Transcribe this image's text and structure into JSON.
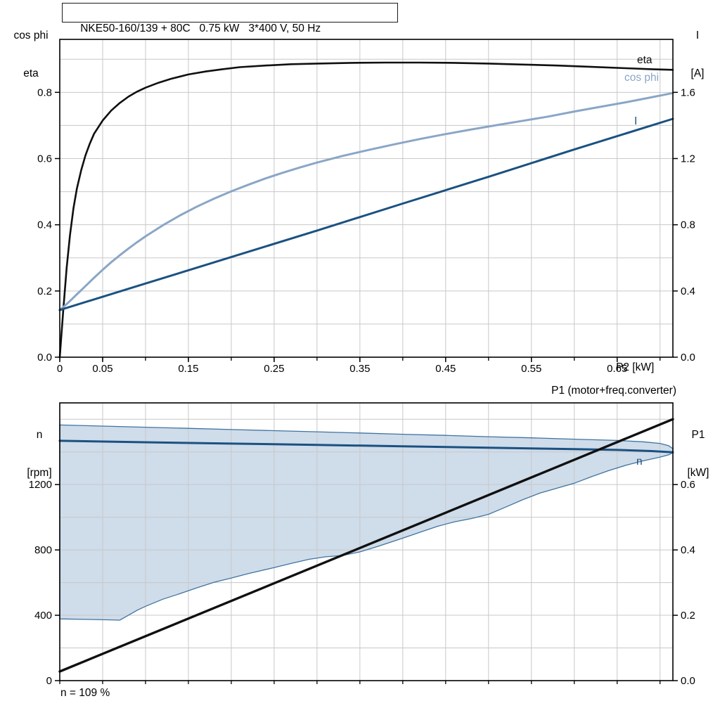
{
  "header": {
    "title": "NKE50-160/139 + 80C   0.75 kW   3*400 V, 50 Hz"
  },
  "labels": {
    "left_axis_top": [
      "cos phi",
      "eta"
    ],
    "right_axis_top": [
      "I",
      "[A]"
    ],
    "x_axis_top": "P2 [kW]",
    "left_axis_bottom": [
      "n",
      "[rpm]"
    ],
    "right_axis_bottom": [
      "P1",
      "[kW]"
    ],
    "p1_line": "P1 (motor+freq.converter)",
    "note": "n = 109 %",
    "curve_eta": "eta",
    "curve_cos_phi": "cos phi",
    "curve_current": "I",
    "curve_speed": "n"
  },
  "colors": {
    "eta": "#101010",
    "cos_phi": "#8aa6c6",
    "current": "#1b5181",
    "speed": "#1b5181",
    "p1": "#101010",
    "range_fill": "#cfdcea",
    "range_edge": "#40739f",
    "grid": "#c8c8c8",
    "frame": "#000000"
  },
  "chart_data": [
    {
      "type": "line",
      "title": "NKE50-160/139 + 80C   0.75 kW   3*400 V, 50 Hz",
      "xlabel": "P2 [kW]",
      "ylabel_left": "cos phi, eta",
      "ylabel_right": "I [A]",
      "xlim": [
        0,
        0.715
      ],
      "ylim_left": [
        0,
        0.96
      ],
      "ylim_right": [
        0,
        1.92
      ],
      "grid": {
        "x_step": 0.05,
        "y_step": 0.1
      },
      "legend_position": "right-inline",
      "x_ticks": [
        {
          "v": 0,
          "label": "0"
        },
        {
          "v": 0.05,
          "label": "0.05"
        },
        {
          "v": 0.15,
          "label": "0.15"
        },
        {
          "v": 0.25,
          "label": "0.25"
        },
        {
          "v": 0.35,
          "label": "0.35"
        },
        {
          "v": 0.45,
          "label": "0.45"
        },
        {
          "v": 0.55,
          "label": "0.55"
        },
        {
          "v": 0.65,
          "label": "0.65"
        }
      ],
      "y_ticks_left": [
        {
          "v": 0,
          "label": "0.0"
        },
        {
          "v": 0.2,
          "label": "0.2"
        },
        {
          "v": 0.4,
          "label": "0.4"
        },
        {
          "v": 0.6,
          "label": "0.6"
        },
        {
          "v": 0.8,
          "label": "0.8"
        }
      ],
      "y_ticks_right": [
        {
          "v": 0,
          "label": "0.0"
        },
        {
          "v": 0.4,
          "label": "0.4"
        },
        {
          "v": 0.8,
          "label": "0.8"
        },
        {
          "v": 1.2,
          "label": "1.2"
        },
        {
          "v": 1.6,
          "label": "1.6"
        }
      ],
      "series": [
        {
          "name": "eta",
          "axis": "left",
          "color_key": "eta",
          "width": 2.6,
          "points": [
            [
              0,
              0
            ],
            [
              0.004,
              0.14
            ],
            [
              0.008,
              0.27
            ],
            [
              0.012,
              0.37
            ],
            [
              0.016,
              0.45
            ],
            [
              0.02,
              0.51
            ],
            [
              0.025,
              0.565
            ],
            [
              0.03,
              0.61
            ],
            [
              0.035,
              0.645
            ],
            [
              0.04,
              0.675
            ],
            [
              0.05,
              0.715
            ],
            [
              0.06,
              0.745
            ],
            [
              0.07,
              0.768
            ],
            [
              0.08,
              0.787
            ],
            [
              0.09,
              0.802
            ],
            [
              0.1,
              0.814
            ],
            [
              0.115,
              0.829
            ],
            [
              0.13,
              0.841
            ],
            [
              0.15,
              0.854
            ],
            [
              0.17,
              0.863
            ],
            [
              0.19,
              0.87
            ],
            [
              0.21,
              0.876
            ],
            [
              0.24,
              0.881
            ],
            [
              0.27,
              0.885
            ],
            [
              0.3,
              0.887
            ],
            [
              0.34,
              0.889
            ],
            [
              0.38,
              0.89
            ],
            [
              0.42,
              0.89
            ],
            [
              0.46,
              0.889
            ],
            [
              0.5,
              0.887
            ],
            [
              0.54,
              0.884
            ],
            [
              0.58,
              0.881
            ],
            [
              0.62,
              0.877
            ],
            [
              0.66,
              0.873
            ],
            [
              0.69,
              0.87
            ],
            [
              0.715,
              0.868
            ]
          ]
        },
        {
          "name": "cos phi",
          "axis": "left",
          "color_key": "cos_phi",
          "width": 3,
          "points": [
            [
              0,
              0.142
            ],
            [
              0.01,
              0.165
            ],
            [
              0.02,
              0.19
            ],
            [
              0.03,
              0.215
            ],
            [
              0.04,
              0.24
            ],
            [
              0.05,
              0.264
            ],
            [
              0.06,
              0.287
            ],
            [
              0.07,
              0.308
            ],
            [
              0.08,
              0.328
            ],
            [
              0.09,
              0.347
            ],
            [
              0.1,
              0.365
            ],
            [
              0.12,
              0.398
            ],
            [
              0.14,
              0.428
            ],
            [
              0.16,
              0.455
            ],
            [
              0.18,
              0.479
            ],
            [
              0.2,
              0.501
            ],
            [
              0.22,
              0.521
            ],
            [
              0.24,
              0.54
            ],
            [
              0.26,
              0.557
            ],
            [
              0.28,
              0.573
            ],
            [
              0.3,
              0.588
            ],
            [
              0.33,
              0.608
            ],
            [
              0.36,
              0.626
            ],
            [
              0.39,
              0.643
            ],
            [
              0.42,
              0.659
            ],
            [
              0.45,
              0.674
            ],
            [
              0.48,
              0.688
            ],
            [
              0.51,
              0.701
            ],
            [
              0.54,
              0.714
            ],
            [
              0.57,
              0.727
            ],
            [
              0.6,
              0.742
            ],
            [
              0.63,
              0.756
            ],
            [
              0.66,
              0.77
            ],
            [
              0.69,
              0.785
            ],
            [
              0.715,
              0.798
            ]
          ]
        },
        {
          "name": "I",
          "axis": "right",
          "color_key": "current",
          "width": 3,
          "points": [
            [
              0,
              0.285
            ],
            [
              0.1,
              0.445
            ],
            [
              0.2,
              0.605
            ],
            [
              0.3,
              0.765
            ],
            [
              0.4,
              0.928
            ],
            [
              0.5,
              1.09
            ],
            [
              0.6,
              1.255
            ],
            [
              0.715,
              1.44
            ]
          ]
        }
      ]
    },
    {
      "type": "line+area",
      "title": "",
      "xlabel": "",
      "ylabel_left": "n [rpm]",
      "ylabel_right": "P1 [kW]",
      "xlim": [
        0,
        0.715
      ],
      "ylim_left": [
        0,
        1700
      ],
      "ylim_right": [
        0,
        0.85
      ],
      "grid": {
        "x_step": 0.05,
        "y_step": 200
      },
      "annotation": "P1 (motor+freq.converter)",
      "note": "n = 109 %",
      "x_ticks": [],
      "y_ticks_left": [
        {
          "v": 0,
          "label": "0"
        },
        {
          "v": 400,
          "label": "400"
        },
        {
          "v": 800,
          "label": "800"
        },
        {
          "v": 1200,
          "label": "1200"
        }
      ],
      "y_ticks_right": [
        {
          "v": 0,
          "label": "0.0"
        },
        {
          "v": 0.2,
          "label": "0.2"
        },
        {
          "v": 0.4,
          "label": "0.4"
        },
        {
          "v": 0.6,
          "label": "0.6"
        }
      ],
      "area": {
        "name": "speed-control-range",
        "fill_key": "range_fill",
        "edge_key": "range_edge",
        "upper": [
          [
            0,
            1565
          ],
          [
            0.05,
            1558
          ],
          [
            0.1,
            1551
          ],
          [
            0.15,
            1544
          ],
          [
            0.2,
            1537
          ],
          [
            0.25,
            1530
          ],
          [
            0.3,
            1523
          ],
          [
            0.35,
            1516
          ],
          [
            0.4,
            1508
          ],
          [
            0.45,
            1501
          ],
          [
            0.5,
            1493
          ],
          [
            0.55,
            1486
          ],
          [
            0.6,
            1478
          ],
          [
            0.65,
            1470
          ],
          [
            0.68,
            1462
          ],
          [
            0.7,
            1452
          ],
          [
            0.71,
            1438
          ],
          [
            0.715,
            1420
          ]
        ],
        "lower": [
          [
            0,
            378
          ],
          [
            0.03,
            375
          ],
          [
            0.06,
            372
          ],
          [
            0.07,
            370
          ],
          [
            0.08,
            400
          ],
          [
            0.09,
            430
          ],
          [
            0.1,
            455
          ],
          [
            0.12,
            498
          ],
          [
            0.14,
            532
          ],
          [
            0.16,
            568
          ],
          [
            0.18,
            602
          ],
          [
            0.2,
            628
          ],
          [
            0.22,
            655
          ],
          [
            0.25,
            692
          ],
          [
            0.27,
            718
          ],
          [
            0.29,
            742
          ],
          [
            0.31,
            758
          ],
          [
            0.33,
            766
          ],
          [
            0.35,
            788
          ],
          [
            0.37,
            820
          ],
          [
            0.4,
            872
          ],
          [
            0.42,
            908
          ],
          [
            0.44,
            944
          ],
          [
            0.46,
            972
          ],
          [
            0.48,
            992
          ],
          [
            0.5,
            1018
          ],
          [
            0.52,
            1062
          ],
          [
            0.54,
            1108
          ],
          [
            0.56,
            1148
          ],
          [
            0.58,
            1178
          ],
          [
            0.6,
            1208
          ],
          [
            0.62,
            1248
          ],
          [
            0.64,
            1285
          ],
          [
            0.66,
            1318
          ],
          [
            0.68,
            1345
          ],
          [
            0.7,
            1368
          ],
          [
            0.71,
            1382
          ],
          [
            0.715,
            1395
          ]
        ]
      },
      "series": [
        {
          "name": "n",
          "axis": "left",
          "color_key": "speed",
          "width": 3,
          "points": [
            [
              0,
              1468
            ],
            [
              0.1,
              1459
            ],
            [
              0.2,
              1451
            ],
            [
              0.3,
              1443
            ],
            [
              0.4,
              1434
            ],
            [
              0.5,
              1426
            ],
            [
              0.6,
              1417
            ],
            [
              0.65,
              1412
            ],
            [
              0.69,
              1405
            ],
            [
              0.715,
              1398
            ]
          ]
        },
        {
          "name": "P1 (motor+freq.converter)",
          "axis": "right",
          "color_key": "p1",
          "width": 3.4,
          "points": [
            [
              0,
              0.028
            ],
            [
              0.715,
              0.8
            ]
          ]
        }
      ]
    }
  ]
}
